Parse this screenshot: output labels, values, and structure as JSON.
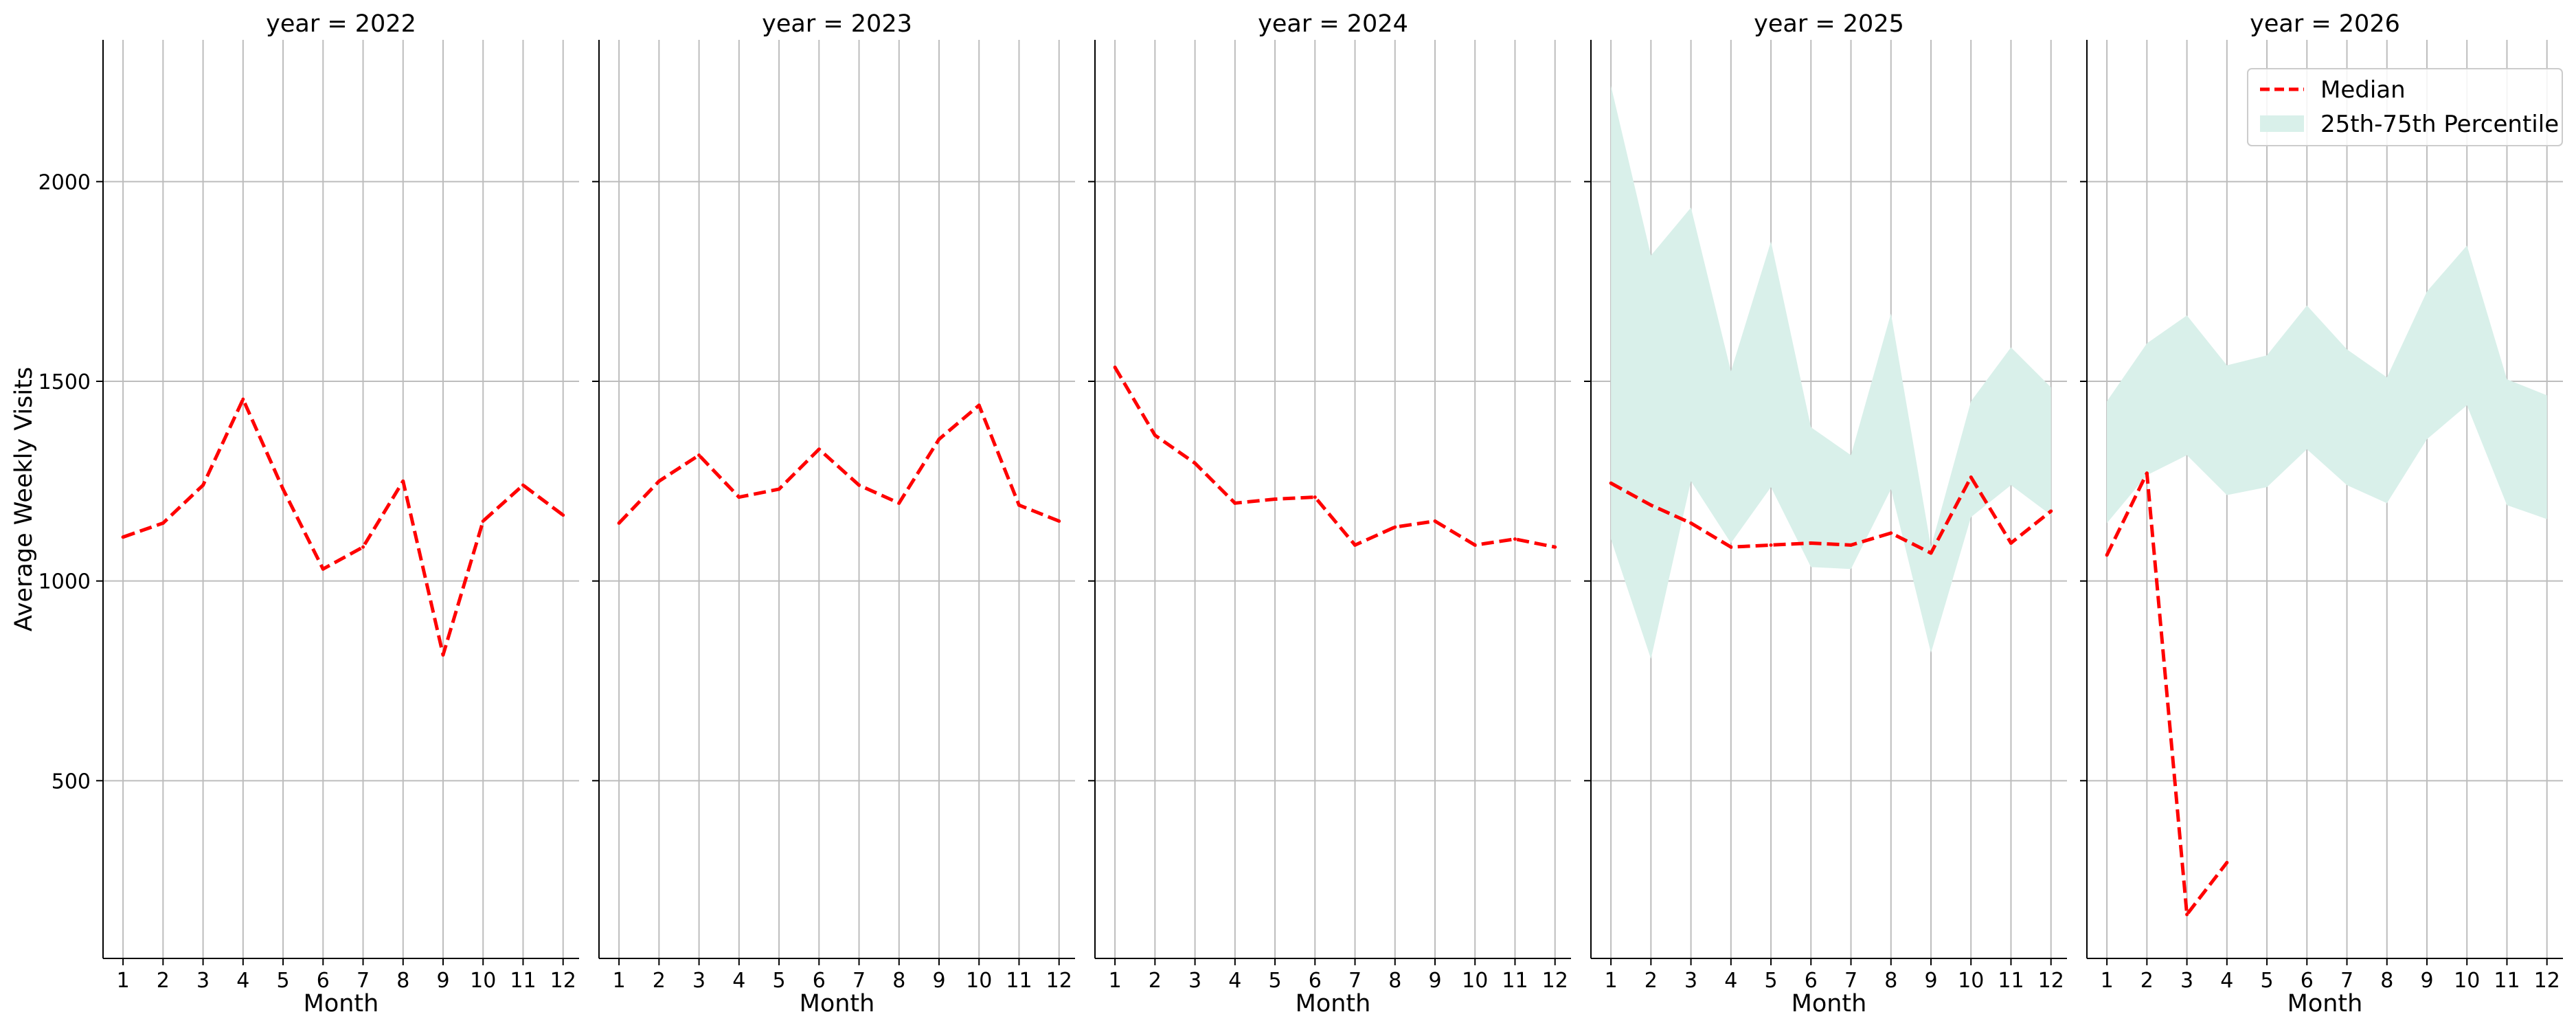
{
  "chart_data": {
    "type": "line",
    "facet_label_prefix": "year = ",
    "xlabel": "Month",
    "ylabel": "Average Weekly Visits",
    "x_ticks": [
      "1",
      "2",
      "3",
      "4",
      "5",
      "6",
      "7",
      "8",
      "9",
      "10",
      "11",
      "12"
    ],
    "y_ticks": [
      "500",
      "1000",
      "1500",
      "2000"
    ],
    "xlim": [
      0.5,
      12.4
    ],
    "ylim": [
      55,
      2355
    ],
    "grid": true,
    "legend": {
      "placement": "top-right",
      "entries": [
        {
          "key": "median",
          "label": "Median"
        },
        {
          "key": "band",
          "label": "25th-75th Percentile"
        }
      ]
    },
    "colors": {
      "median": "#ff0000",
      "band": "#d9f0ea",
      "grid": "#bdbdbd",
      "axis": "#000000"
    },
    "panels": [
      {
        "year": "2022",
        "median": [
          [
            1,
            1110
          ],
          [
            2,
            1145
          ],
          [
            3,
            1240
          ],
          [
            4,
            1455
          ],
          [
            5,
            1230
          ],
          [
            6,
            1030
          ],
          [
            7,
            1085
          ],
          [
            8,
            1250
          ],
          [
            9,
            815
          ],
          [
            10,
            1150
          ],
          [
            11,
            1240
          ],
          [
            12,
            1165
          ]
        ],
        "band": []
      },
      {
        "year": "2023",
        "median": [
          [
            1,
            1145
          ],
          [
            2,
            1250
          ],
          [
            3,
            1315
          ],
          [
            4,
            1210
          ],
          [
            5,
            1230
          ],
          [
            6,
            1330
          ],
          [
            7,
            1240
          ],
          [
            8,
            1195
          ],
          [
            9,
            1355
          ],
          [
            10,
            1440
          ],
          [
            11,
            1190
          ],
          [
            12,
            1150
          ]
        ],
        "band": []
      },
      {
        "year": "2024",
        "median": [
          [
            1,
            1535
          ],
          [
            2,
            1365
          ],
          [
            3,
            1295
          ],
          [
            4,
            1195
          ],
          [
            5,
            1205
          ],
          [
            6,
            1210
          ],
          [
            7,
            1090
          ],
          [
            8,
            1135
          ],
          [
            9,
            1150
          ],
          [
            10,
            1090
          ],
          [
            11,
            1105
          ],
          [
            12,
            1085
          ]
        ],
        "band": []
      },
      {
        "year": "2025",
        "median": [
          [
            1,
            1245
          ],
          [
            2,
            1190
          ],
          [
            3,
            1145
          ],
          [
            4,
            1085
          ],
          [
            5,
            1090
          ],
          [
            6,
            1095
          ],
          [
            7,
            1090
          ],
          [
            8,
            1120
          ],
          [
            9,
            1070
          ],
          [
            10,
            1260
          ],
          [
            11,
            1095
          ],
          [
            12,
            1175
          ]
        ],
        "band": [
          [
            1,
            1105,
            2240
          ],
          [
            2,
            805,
            1815
          ],
          [
            3,
            1250,
            1935
          ],
          [
            4,
            1095,
            1525
          ],
          [
            5,
            1235,
            1850
          ],
          [
            6,
            1035,
            1385
          ],
          [
            7,
            1030,
            1315
          ],
          [
            8,
            1230,
            1670
          ],
          [
            9,
            820,
            1085
          ],
          [
            10,
            1160,
            1450
          ],
          [
            11,
            1240,
            1585
          ],
          [
            12,
            1165,
            1485
          ]
        ]
      },
      {
        "year": "2026",
        "median": [
          [
            1,
            1065
          ],
          [
            2,
            1270
          ],
          [
            3,
            165
          ],
          [
            4,
            295
          ]
        ],
        "band": [
          [
            1,
            1145,
            1450
          ],
          [
            2,
            1265,
            1595
          ],
          [
            3,
            1315,
            1665
          ],
          [
            4,
            1215,
            1540
          ],
          [
            5,
            1235,
            1565
          ],
          [
            6,
            1330,
            1690
          ],
          [
            7,
            1240,
            1580
          ],
          [
            8,
            1195,
            1510
          ],
          [
            9,
            1355,
            1725
          ],
          [
            10,
            1440,
            1840
          ],
          [
            11,
            1190,
            1505
          ],
          [
            12,
            1155,
            1465
          ]
        ]
      }
    ]
  }
}
